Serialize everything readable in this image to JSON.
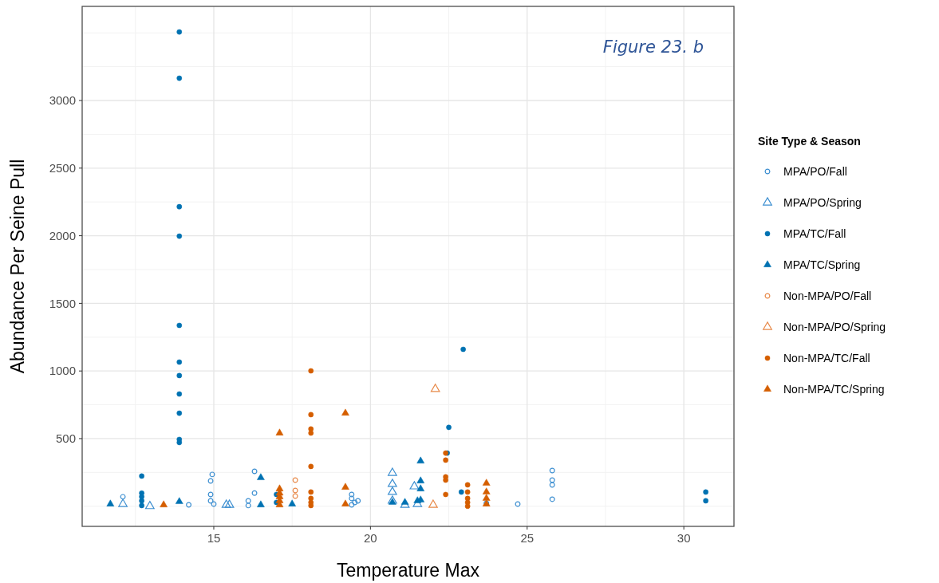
{
  "chart_data": {
    "type": "scatter",
    "xlabel": "Temperature Max",
    "ylabel": "Abundance Per Seine Pull",
    "legend_title": "Site Type & Season",
    "legend": "right",
    "grid": true,
    "annotations": [
      "Figure 23. b"
    ],
    "xlim": [
      10.8,
      31.6
    ],
    "xticks": [
      15,
      20,
      25,
      30
    ],
    "ylim": [
      -149,
      3696
    ],
    "yticks": [
      500,
      1000,
      1500,
      2000,
      2500,
      3000
    ],
    "series": [
      {
        "name": "MPA/PO/Fall",
        "color": "#3d8fd1",
        "marker": "circle",
        "x": [
          12.1,
          14.2,
          14.95,
          14.9,
          14.9,
          14.9,
          15.0,
          16.3,
          16.3,
          16.1,
          16.1,
          19.4,
          19.4,
          19.5,
          19.4,
          19.6,
          23.7,
          24.7,
          25.8,
          25.8,
          25.8,
          25.8
        ],
        "values": [
          70,
          10,
          235,
          187,
          87,
          40,
          16,
          258,
          97,
          40,
          5,
          87,
          58,
          28,
          10,
          40,
          22,
          16,
          264,
          193,
          158,
          52
        ]
      },
      {
        "name": "MPA/PO/Spring",
        "color": "#3d8fd1",
        "marker": "triangle",
        "x": [
          12.1,
          12.96,
          15.4,
          15.5,
          20.7,
          20.7,
          20.7,
          20.7,
          21.4,
          21.1,
          21.5
        ],
        "values": [
          16,
          0,
          10,
          10,
          246,
          164,
          105,
          40,
          146,
          10,
          16
        ]
      },
      {
        "name": "MPA/TC/Fall",
        "color": "#0072b2",
        "marker": "circle",
        "x": [
          12.7,
          12.7,
          12.7,
          12.7,
          12.7,
          13.9,
          13.9,
          13.9,
          13.9,
          13.9,
          13.9,
          13.9,
          13.9,
          13.9,
          13.9,
          13.9,
          17.0,
          17.0,
          22.45,
          22.5,
          22.96,
          22.9,
          30.7,
          30.7
        ],
        "values": [
          223,
          97,
          70,
          40,
          5,
          3507,
          3165,
          2215,
          1997,
          1337,
          1066,
          966,
          830,
          688,
          494,
          471,
          87,
          28,
          393,
          583,
          1160,
          105,
          105,
          40
        ]
      },
      {
        "name": "MPA/TC/Spring",
        "color": "#0072b2",
        "marker": "triangle",
        "x": [
          11.7,
          13.9,
          16.5,
          16.5,
          17.5,
          20.7,
          21.1,
          21.5,
          21.6,
          21.6,
          21.6,
          21.6
        ],
        "values": [
          16,
          34,
          211,
          10,
          16,
          28,
          28,
          40,
          334,
          187,
          128,
          46
        ]
      },
      {
        "name": "Non-MPA/PO/Fall",
        "color": "#e88a4a",
        "marker": "circle",
        "x": [
          17.6,
          17.6,
          17.6
        ],
        "values": [
          193,
          116,
          75
        ]
      },
      {
        "name": "Non-MPA/PO/Spring",
        "color": "#e88a4a",
        "marker": "triangle",
        "x": [
          22.07,
          22.0
        ],
        "values": [
          866,
          10
        ]
      },
      {
        "name": "Non-MPA/TC/Fall",
        "color": "#d55e00",
        "marker": "circle",
        "x": [
          18.1,
          18.1,
          18.1,
          18.1,
          18.1,
          18.1,
          18.1,
          18.1,
          18.1,
          22.4,
          22.4,
          22.4,
          22.4,
          22.4,
          23.1,
          23.1,
          23.1,
          23.1,
          23.1
        ],
        "values": [
          1001,
          677,
          571,
          541,
          294,
          105,
          58,
          28,
          5,
          393,
          341,
          217,
          193,
          87,
          158,
          105,
          58,
          28,
          0
        ]
      },
      {
        "name": "Non-MPA/TC/Spring",
        "color": "#d55e00",
        "marker": "triangle",
        "x": [
          13.4,
          17.1,
          17.1,
          17.1,
          17.1,
          17.1,
          17.1,
          19.2,
          19.2,
          19.2,
          23.7,
          23.7,
          23.7,
          23.7
        ],
        "values": [
          10,
          541,
          128,
          97,
          70,
          40,
          10,
          688,
          140,
          16,
          170,
          105,
          58,
          16
        ]
      }
    ]
  }
}
